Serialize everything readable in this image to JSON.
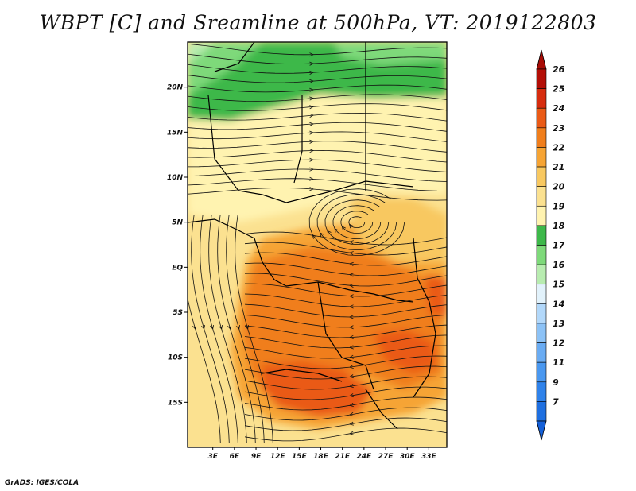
{
  "title": "WBPT [C] and Sreamline at 500hPa, VT: 2019122803",
  "footer": "GrADS: IGES/COLA",
  "map": {
    "lon_range": [
      -0.5,
      35.5
    ],
    "lat_range": [
      -20,
      25
    ],
    "lon_ticks": [
      "3E",
      "6E",
      "9E",
      "12E",
      "15E",
      "18E",
      "21E",
      "24E",
      "27E",
      "30E",
      "33E"
    ],
    "lon_tick_values": [
      3,
      6,
      9,
      12,
      15,
      18,
      21,
      24,
      27,
      30,
      33
    ],
    "lat_ticks": [
      "20N",
      "15N",
      "10N",
      "5N",
      "EQ",
      "5S",
      "10S",
      "15S"
    ],
    "lat_tick_values": [
      20,
      15,
      10,
      5,
      0,
      -5,
      -10,
      -15
    ]
  },
  "colorbar": {
    "labels": [
      "7",
      "9",
      "11",
      "12",
      "13",
      "14",
      "15",
      "16",
      "17",
      "18",
      "19",
      "20",
      "21",
      "22",
      "23",
      "24",
      "25",
      "26"
    ],
    "colors": [
      "#1e6fe0",
      "#2f82ea",
      "#4a98f0",
      "#6aacf3",
      "#8cc2f6",
      "#b2d8fa",
      "#e2f2fb",
      "#b8ecb0",
      "#7ed97a",
      "#3db84a",
      "#fff3b0",
      "#fbe190",
      "#f8c860",
      "#f6a434",
      "#f07e1c",
      "#ea5a16",
      "#d62c0e",
      "#b30e06"
    ],
    "under_color": "#1560d8",
    "over_color": "#a80c06"
  }
}
